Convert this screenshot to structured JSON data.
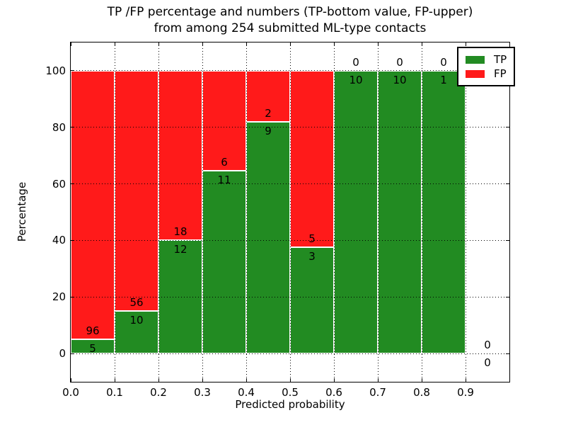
{
  "figure": {
    "background": "#ffffff"
  },
  "chart_data": {
    "type": "bar",
    "stacked": true,
    "title_lines": [
      "TP /FP percentage and numbers (TP-bottom value, FP-upper)",
      "from among 254 submitted ML-type contacts"
    ],
    "xlabel": "Predicted probability",
    "ylabel": "Percentage",
    "xlim": [
      0.0,
      1.0
    ],
    "ylim": [
      -10,
      110
    ],
    "xticks": [
      0.0,
      0.1,
      0.2,
      0.3,
      0.4,
      0.5,
      0.6,
      0.7,
      0.8,
      0.9
    ],
    "xtick_labels": [
      "0.0",
      "0.1",
      "0.2",
      "0.3",
      "0.4",
      "0.5",
      "0.6",
      "0.7",
      "0.8",
      "0.9"
    ],
    "yticks": [
      0,
      20,
      40,
      60,
      80,
      100
    ],
    "ytick_labels": [
      "0",
      "20",
      "40",
      "60",
      "80",
      "100"
    ],
    "grid": true,
    "grid_style": "dotted",
    "legend_position": "upper right",
    "bin_edges": [
      0.0,
      0.1,
      0.2,
      0.3,
      0.4,
      0.5,
      0.6,
      0.7,
      0.8,
      0.9,
      1.0
    ],
    "series": [
      {
        "name": "TP",
        "color": "#228b22",
        "counts": [
          5,
          10,
          12,
          11,
          9,
          3,
          10,
          10,
          1,
          0
        ]
      },
      {
        "name": "FP",
        "color": "#ff1a1a",
        "counts": [
          96,
          56,
          18,
          6,
          2,
          5,
          0,
          0,
          0,
          0
        ]
      }
    ],
    "tp_percent": [
      4.95,
      15.15,
      40.0,
      64.71,
      81.82,
      37.5,
      100.0,
      100.0,
      100.0,
      0.0
    ],
    "total_contacts": 254
  }
}
